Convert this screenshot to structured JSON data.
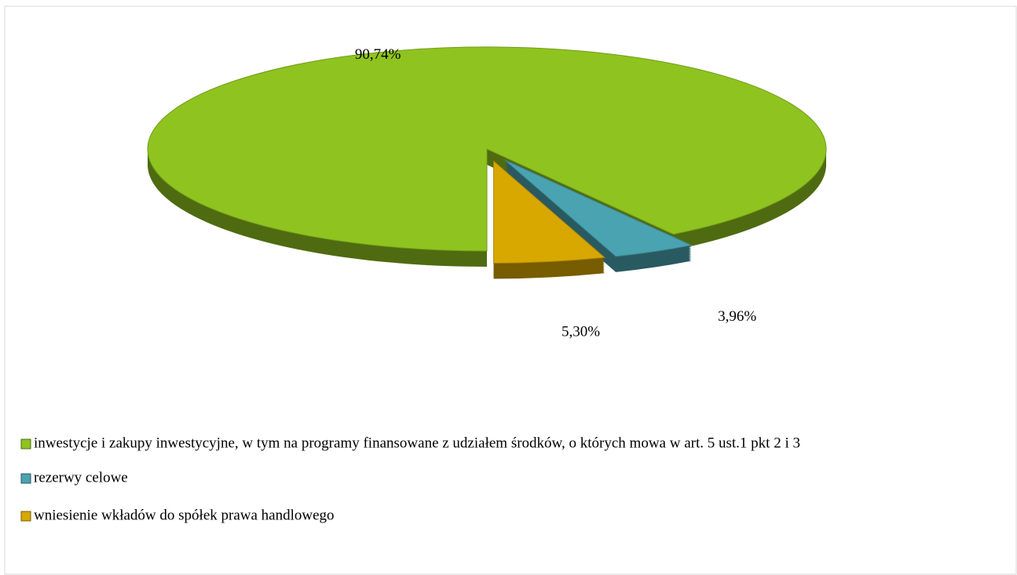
{
  "chart_data": {
    "type": "pie",
    "categories": [
      "inwestycje i zakupy inwestycyjne, w tym na programy finansowane z udziałem środków, o których mowa w art. 5 ust.1 pkt 2 i 3",
      "rezerwy celowe",
      "wniesienie wkładów do spółek prawa handlowego"
    ],
    "values": [
      90.74,
      3.96,
      5.3
    ],
    "value_labels": [
      "90,74%",
      "3,96%",
      "5,30%"
    ],
    "colors": [
      "#8fc31f",
      "#4aa3b0",
      "#d9a800"
    ],
    "legend": "bottom"
  }
}
